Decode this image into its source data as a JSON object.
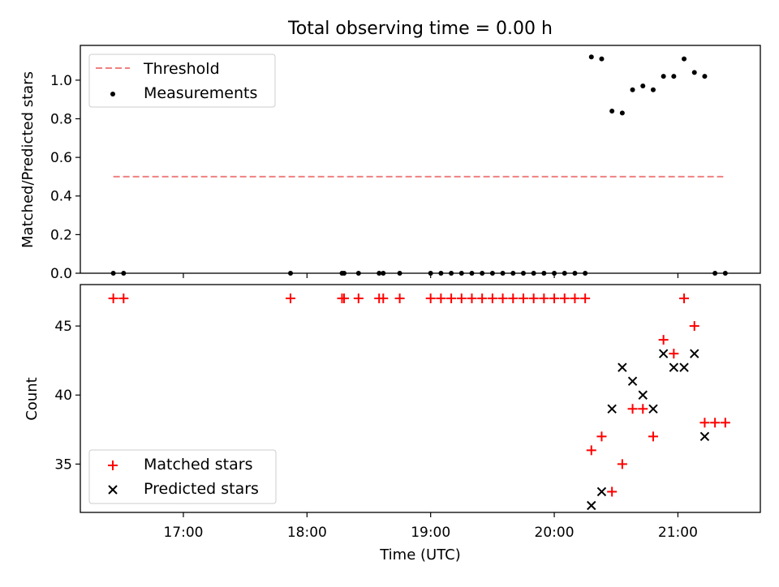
{
  "chart_data": [
    {
      "type": "scatter",
      "title": "Total observing time = 0.00 h",
      "xlabel": "",
      "ylabel": "Matched/Predicted stars",
      "xlim": [
        "16:10",
        "21:40"
      ],
      "ylim": [
        0,
        1.18
      ],
      "y_ticks": [
        0.0,
        0.2,
        0.4,
        0.6,
        0.8,
        1.0
      ],
      "y_tick_labels": [
        "0.0",
        "0.2",
        "0.4",
        "0.6",
        "0.8",
        "1.0"
      ],
      "grid": false,
      "legend_position": "top-left",
      "series": [
        {
          "name": "Threshold",
          "kind": "dashed-line",
          "color": "#f08080",
          "x": [
            "16:26",
            "21:22"
          ],
          "y": [
            0.5,
            0.5
          ]
        },
        {
          "name": "Measurements",
          "kind": "dots",
          "color": "#000000",
          "x": [
            "16:26",
            "16:31",
            "17:52",
            "18:17",
            "18:18",
            "18:25",
            "18:35",
            "18:37",
            "18:45",
            "19:00",
            "19:05",
            "19:10",
            "19:15",
            "19:20",
            "19:25",
            "19:30",
            "19:35",
            "19:40",
            "19:45",
            "19:50",
            "19:55",
            "20:00",
            "20:05",
            "20:10",
            "20:15",
            "20:18",
            "20:23",
            "20:28",
            "20:33",
            "20:38",
            "20:43",
            "20:48",
            "20:53",
            "20:58",
            "21:03",
            "21:08",
            "21:13",
            "21:18",
            "21:23"
          ],
          "y": [
            0,
            0,
            0,
            0,
            0,
            0,
            0,
            0,
            0,
            0,
            0,
            0,
            0,
            0,
            0,
            0,
            0,
            0,
            0,
            0,
            0,
            0,
            0,
            0,
            0,
            1.12,
            1.11,
            0.84,
            0.83,
            0.95,
            0.97,
            0.95,
            1.02,
            1.02,
            1.11,
            1.04,
            1.02,
            0,
            0
          ]
        }
      ]
    },
    {
      "type": "scatter",
      "title": "",
      "xlabel": "Time (UTC)",
      "ylabel": "Count",
      "xlim": [
        "16:10",
        "21:40"
      ],
      "ylim": [
        31.5,
        48
      ],
      "y_ticks": [
        35,
        40,
        45
      ],
      "y_tick_labels": [
        "35",
        "40",
        "45"
      ],
      "x_ticks": [
        "17:00",
        "18:00",
        "19:00",
        "20:00",
        "21:00"
      ],
      "x_tick_labels": [
        "17:00",
        "18:00",
        "19:00",
        "20:00",
        "21:00"
      ],
      "grid": false,
      "legend_position": "bottom-left",
      "series": [
        {
          "name": "Matched stars",
          "kind": "plus",
          "color": "#ff0000",
          "x": [
            "16:26",
            "16:31",
            "17:52",
            "18:17",
            "18:18",
            "18:25",
            "18:35",
            "18:37",
            "18:45",
            "19:00",
            "19:05",
            "19:10",
            "19:15",
            "19:20",
            "19:25",
            "19:30",
            "19:35",
            "19:40",
            "19:45",
            "19:50",
            "19:55",
            "20:00",
            "20:05",
            "20:10",
            "20:15",
            "20:18",
            "20:23",
            "20:28",
            "20:33",
            "20:38",
            "20:43",
            "20:48",
            "20:53",
            "20:58",
            "21:03",
            "21:08",
            "21:13",
            "21:18",
            "21:23"
          ],
          "y": [
            47,
            47,
            47,
            47,
            47,
            47,
            47,
            47,
            47,
            47,
            47,
            47,
            47,
            47,
            47,
            47,
            47,
            47,
            47,
            47,
            47,
            47,
            47,
            47,
            47,
            36,
            37,
            33,
            35,
            39,
            39,
            37,
            44,
            43,
            47,
            45,
            38,
            38,
            38
          ]
        },
        {
          "name": "Predicted stars",
          "kind": "x",
          "color": "#000000",
          "x": [
            "20:18",
            "20:23",
            "20:28",
            "20:33",
            "20:38",
            "20:43",
            "20:48",
            "20:53",
            "20:58",
            "21:03",
            "21:08",
            "21:13"
          ],
          "y": [
            32,
            33,
            39,
            42,
            41,
            40,
            39,
            43,
            42,
            42,
            43,
            37
          ]
        }
      ]
    }
  ]
}
